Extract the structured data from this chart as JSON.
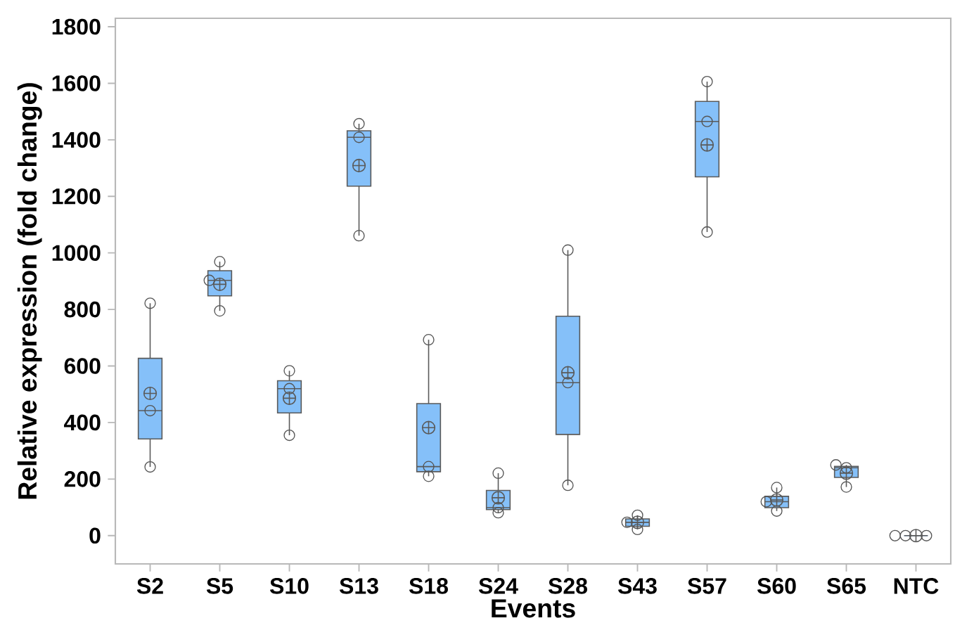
{
  "chart_data": {
    "type": "box",
    "xlabel": "Events",
    "ylabel": "Relative expression (fold change)",
    "categories": [
      "S2",
      "S5",
      "S10",
      "S13",
      "S18",
      "S24",
      "S28",
      "S43",
      "S57",
      "S60",
      "S65",
      "NTC"
    ],
    "ylim": [
      -100,
      1830
    ],
    "yticks": [
      0,
      200,
      400,
      600,
      800,
      1000,
      1200,
      1400,
      1600,
      1800
    ],
    "grid": false,
    "marker": "circle",
    "series": [
      {
        "color": "#85c0f9",
        "boxes": [
          {
            "low": 243,
            "q1": 342,
            "median": 442,
            "q3": 627,
            "high": 822,
            "mean": 503
          },
          {
            "low": 795,
            "q1": 848,
            "median": 903,
            "q3": 937,
            "high": 969,
            "mean": 889
          },
          {
            "low": 355,
            "q1": 434,
            "median": 520,
            "q3": 548,
            "high": 583,
            "mean": 486
          },
          {
            "low": 1061,
            "q1": 1236,
            "median": 1409,
            "q3": 1432,
            "high": 1457,
            "mean": 1309
          },
          {
            "low": 210,
            "q1": 226,
            "median": 244,
            "q3": 467,
            "high": 693,
            "mean": 382
          },
          {
            "low": 81,
            "q1": 92,
            "median": 99,
            "q3": 160,
            "high": 221,
            "mean": 134
          },
          {
            "low": 178,
            "q1": 358,
            "median": 541,
            "q3": 776,
            "high": 1010,
            "mean": 576
          },
          {
            "low": 22,
            "q1": 33,
            "median": 47,
            "q3": 59,
            "high": 72,
            "mean": 47
          },
          {
            "low": 1074,
            "q1": 1269,
            "median": 1465,
            "q3": 1536,
            "high": 1606,
            "mean": 1382
          },
          {
            "low": 87,
            "q1": 99,
            "median": 120,
            "q3": 139,
            "high": 170,
            "mean": 126
          },
          {
            "low": 172,
            "q1": 206,
            "median": 240,
            "q3": 245,
            "high": 250,
            "mean": 221
          },
          {
            "low": 0,
            "q1": 0,
            "median": 0,
            "q3": 0,
            "high": 0,
            "mean": 0
          }
        ]
      },
      {
        "type": "scatter",
        "color": "#555555",
        "x": [
          "S2",
          "S2",
          "S2",
          "S5",
          "S5",
          "S5",
          "S10",
          "S10",
          "S10",
          "S13",
          "S13",
          "S13",
          "S18",
          "S18",
          "S18",
          "S24",
          "S24",
          "S24",
          "S28",
          "S28",
          "S28",
          "S43",
          "S43",
          "S43",
          "S57",
          "S57",
          "S57",
          "S60",
          "S60",
          "S60",
          "S65",
          "S65",
          "S65",
          "NTC",
          "NTC",
          "NTC"
        ],
        "values": [
          243,
          442,
          822,
          795,
          903,
          969,
          355,
          520,
          583,
          1061,
          1409,
          1457,
          210,
          244,
          693,
          81,
          99,
          221,
          178,
          541,
          1010,
          22,
          47,
          72,
          1074,
          1465,
          1606,
          87,
          120,
          170,
          172,
          240,
          250,
          0,
          0,
          0
        ]
      }
    ]
  }
}
